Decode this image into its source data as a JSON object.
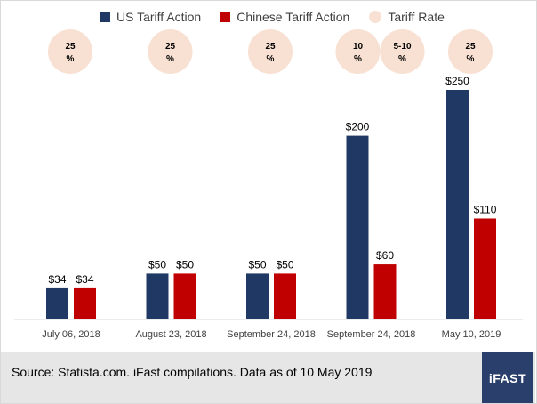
{
  "legend": {
    "us_label": "US Tariff Action",
    "cn_label": "Chinese Tariff Action",
    "rate_label": "Tariff Rate"
  },
  "colors": {
    "us": "#203864",
    "cn": "#c00000",
    "rate_bubble": "#f8e1d2",
    "axis": "#d9d9d9",
    "text": "#404040",
    "logo_bg": "#2a3f6b"
  },
  "footer": {
    "source": "Source: Statista.com. iFast compilations. Data as of 10 May 2019",
    "logo_text": "iFAST"
  },
  "chart_data": {
    "type": "bar",
    "categories": [
      "July 06, 2018",
      "August 23, 2018",
      "September 24, 2018",
      "September 24, 2018",
      "May 10, 2019"
    ],
    "series": [
      {
        "name": "US Tariff Action",
        "values": [
          34,
          50,
          50,
          200,
          250
        ],
        "labels": [
          "$34",
          "$50",
          "$50",
          "$200",
          "$250"
        ]
      },
      {
        "name": "Chinese Tariff Action",
        "values": [
          34,
          50,
          50,
          60,
          110
        ],
        "labels": [
          "$34",
          "$50",
          "$50",
          "$60",
          "$110"
        ]
      }
    ],
    "tariff_rates": [
      [
        {
          "line1": "25",
          "line2": "%"
        }
      ],
      [
        {
          "line1": "25",
          "line2": "%"
        }
      ],
      [
        {
          "line1": "25",
          "line2": "%"
        }
      ],
      [
        {
          "line1": "10",
          "line2": "%"
        },
        {
          "line1": "5-10",
          "line2": "%"
        }
      ],
      [
        {
          "line1": "25",
          "line2": "%"
        }
      ]
    ],
    "ylim": [
      0,
      250
    ],
    "legend_position": "top",
    "grid": false
  }
}
